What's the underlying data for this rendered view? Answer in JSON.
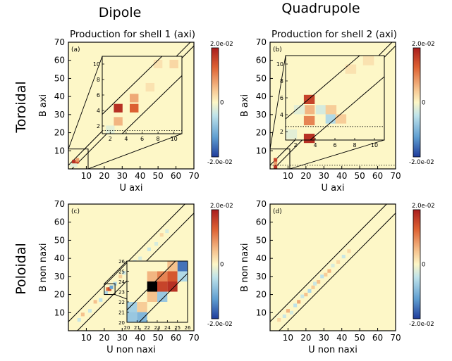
{
  "columns": [
    "Dipole",
    "Quadrupole"
  ],
  "rows": [
    "Toroidal",
    "Poloidal"
  ],
  "colorbar": {
    "max_label": "2.0e-02",
    "mid_label": "0",
    "min_label": "-2.0e-02",
    "colors": [
      "#1f3c9b",
      "#5f9ed1",
      "#bfe3ea",
      "#fdf7c7",
      "#f6c48f",
      "#de6233",
      "#a81e1e"
    ],
    "background": "#fdf7c7"
  },
  "chart_data": [
    {
      "type": "heatmap",
      "panel": "(a)",
      "title": "Production for shell 1 (axi)",
      "xlabel": "U axi",
      "ylabel": "B axi",
      "xlim": [
        0,
        70
      ],
      "ylim": [
        0,
        70
      ],
      "xticks": [
        10,
        20,
        30,
        40,
        50,
        60,
        70
      ],
      "yticks": [
        10,
        20,
        30,
        40,
        50,
        60,
        70
      ],
      "color_range": [
        -0.02,
        0.02
      ],
      "band_halfwidth": 2,
      "cells": [
        {
          "u": 3,
          "b": 2,
          "v": 0.002
        },
        {
          "u": 3,
          "b": 4,
          "v": 0.018
        },
        {
          "u": 4,
          "b": 2,
          "v": -0.002
        },
        {
          "u": 5,
          "b": 4,
          "v": 0.015
        },
        {
          "u": 5,
          "b": 5,
          "v": 0.008
        },
        {
          "u": 2,
          "b": 2,
          "v": -0.002
        }
      ],
      "inset": {
        "xlim": [
          1,
          11
        ],
        "ylim": [
          1,
          11
        ],
        "xticks": [
          2,
          4,
          6,
          8,
          10
        ],
        "yticks": [
          2,
          4,
          6,
          8,
          10
        ],
        "dotted_y": 1.4,
        "cells": [
          {
            "u": 2,
            "b": 1.5,
            "v": -0.002
          },
          {
            "u": 3,
            "b": 2.6,
            "v": 0.006
          },
          {
            "u": 3,
            "b": 4.3,
            "v": 0.018
          },
          {
            "u": 5,
            "b": 4.3,
            "v": 0.013
          },
          {
            "u": 5,
            "b": 5.6,
            "v": 0.007
          },
          {
            "u": 7,
            "b": 7,
            "v": 0.002
          },
          {
            "u": 8,
            "b": 10,
            "v": 0.002
          },
          {
            "u": 10,
            "b": 10,
            "v": 0.003
          }
        ]
      }
    },
    {
      "type": "heatmap",
      "panel": "(b)",
      "title": "Production for shell 2 (axi)",
      "xlabel": "U axi",
      "ylabel": "B axi",
      "xlim": [
        0,
        70
      ],
      "ylim": [
        0,
        70
      ],
      "xticks": [
        10,
        20,
        30,
        40,
        50,
        60,
        70
      ],
      "yticks": [
        10,
        20,
        30,
        40,
        50,
        60,
        70
      ],
      "color_range": [
        -0.02,
        0.02
      ],
      "band_halfwidth": 2,
      "cells": [
        {
          "u": 3,
          "b": 1,
          "v": 0.018
        },
        {
          "u": 3,
          "b": 3,
          "v": 0.008
        },
        {
          "u": 3,
          "b": 5,
          "v": 0.016
        }
      ],
      "inset": {
        "xlim": [
          1,
          11
        ],
        "ylim": [
          1,
          11
        ],
        "xticks": [
          2,
          4,
          6,
          8,
          10
        ],
        "yticks": [
          2,
          4,
          6,
          8,
          10
        ],
        "dotted_y": 2.6,
        "cells": [
          {
            "u": 1.6,
            "b": 1.7,
            "v": -0.002
          },
          {
            "u": 3.4,
            "b": 1.2,
            "v": 0.018
          },
          {
            "u": 3.4,
            "b": 3.3,
            "v": 0.01
          },
          {
            "u": 3.4,
            "b": 4.6,
            "v": 0.006
          },
          {
            "u": 3.4,
            "b": 5.8,
            "v": 0.016
          },
          {
            "u": 2.4,
            "b": 4.6,
            "v": -0.002
          },
          {
            "u": 4.6,
            "b": 4.6,
            "v": -0.003
          },
          {
            "u": 5.6,
            "b": 3.5,
            "v": -0.006
          },
          {
            "u": 5.6,
            "b": 4.6,
            "v": 0.004
          },
          {
            "u": 6.6,
            "b": 3.5,
            "v": 0.004
          },
          {
            "u": 7.6,
            "b": 9.4,
            "v": 0.002
          },
          {
            "u": 9.4,
            "b": 10.4,
            "v": 0.002
          }
        ]
      }
    },
    {
      "type": "heatmap",
      "panel": "(c)",
      "title": "",
      "xlabel": "U non naxi",
      "ylabel": "B non naxi",
      "xlim": [
        0,
        70
      ],
      "ylim": [
        0,
        70
      ],
      "xticks": [
        10,
        20,
        30,
        40,
        50,
        60,
        70
      ],
      "yticks": [
        10,
        20,
        30,
        40,
        50,
        60,
        70
      ],
      "color_range": [
        -0.02,
        0.02
      ],
      "band_halfwidth": 5,
      "cells": [
        {
          "u": 6,
          "b": 6,
          "v": -0.004
        },
        {
          "u": 8,
          "b": 9,
          "v": 0.005
        },
        {
          "u": 12,
          "b": 11,
          "v": -0.004
        },
        {
          "u": 15,
          "b": 16,
          "v": 0.005
        },
        {
          "u": 18,
          "b": 17,
          "v": -0.005
        },
        {
          "u": 21,
          "b": 21,
          "v": -0.006
        },
        {
          "u": 22,
          "b": 23,
          "v": 0.012
        },
        {
          "u": 23,
          "b": 23,
          "v": 0.015
        },
        {
          "u": 24,
          "b": 24,
          "v": -0.012
        },
        {
          "u": 26,
          "b": 26,
          "v": -0.006
        },
        {
          "u": 29,
          "b": 30,
          "v": 0.004
        },
        {
          "u": 31,
          "b": 32,
          "v": -0.004
        },
        {
          "u": 34,
          "b": 34,
          "v": -0.006
        },
        {
          "u": 37,
          "b": 38,
          "v": -0.004
        },
        {
          "u": 40,
          "b": 40,
          "v": -0.003
        },
        {
          "u": 45,
          "b": 45,
          "v": -0.004
        },
        {
          "u": 49,
          "b": 48,
          "v": -0.003
        },
        {
          "u": 52,
          "b": 53,
          "v": 0.003
        },
        {
          "u": 55,
          "b": 55,
          "v": -0.003
        }
      ],
      "inset": {
        "xlim": [
          20,
          26
        ],
        "ylim": [
          20,
          26
        ],
        "xticks": [
          20,
          21,
          22,
          23,
          24,
          25,
          26
        ],
        "yticks": [
          20,
          21,
          22,
          23,
          24,
          25,
          26
        ],
        "cells": [
          {
            "u": 20.5,
            "b": 20.5,
            "v": -0.008
          },
          {
            "u": 21.5,
            "b": 20.5,
            "v": -0.01
          },
          {
            "u": 20.5,
            "b": 21.5,
            "v": -0.007
          },
          {
            "u": 21.5,
            "b": 21.5,
            "v": 0.004
          },
          {
            "u": 22.5,
            "b": 22.5,
            "v": 0.005
          },
          {
            "u": 23.5,
            "b": 22.5,
            "v": -0.008
          },
          {
            "u": 23.5,
            "b": 23.5,
            "v": 0.016
          },
          {
            "u": 24.5,
            "b": 23.5,
            "v": 0.018
          },
          {
            "u": 22.5,
            "b": 24.5,
            "v": 0.006
          },
          {
            "u": 23.5,
            "b": 24.5,
            "v": 0.01
          },
          {
            "u": 24.5,
            "b": 24.5,
            "v": 0.014
          },
          {
            "u": 25.5,
            "b": 24.5,
            "v": -0.006
          },
          {
            "u": 25.5,
            "b": 25.5,
            "v": -0.016
          },
          {
            "u": 24.5,
            "b": 25.5,
            "v": 0.005
          }
        ],
        "black_cell": {
          "u": 22.5,
          "b": 23.5
        }
      }
    },
    {
      "type": "heatmap",
      "panel": "(d)",
      "title": "",
      "xlabel": "U non naxi",
      "ylabel": "B non naxi",
      "xlim": [
        0,
        70
      ],
      "ylim": [
        0,
        70
      ],
      "xticks": [
        10,
        20,
        30,
        40,
        50,
        60,
        70
      ],
      "yticks": [
        10,
        20,
        30,
        40,
        50,
        60,
        70
      ],
      "color_range": [
        -0.02,
        0.02
      ],
      "band_halfwidth": 5,
      "cells": [
        {
          "u": 5,
          "b": 6,
          "v": 0.003
        },
        {
          "u": 8,
          "b": 8,
          "v": -0.004
        },
        {
          "u": 10,
          "b": 11,
          "v": 0.006
        },
        {
          "u": 12,
          "b": 10,
          "v": -0.003
        },
        {
          "u": 14,
          "b": 14,
          "v": -0.005
        },
        {
          "u": 16,
          "b": 16,
          "v": 0.007
        },
        {
          "u": 18,
          "b": 19,
          "v": -0.004
        },
        {
          "u": 20,
          "b": 20,
          "v": 0.005
        },
        {
          "u": 22,
          "b": 22,
          "v": -0.006
        },
        {
          "u": 24,
          "b": 24,
          "v": 0.004
        },
        {
          "u": 25,
          "b": 26,
          "v": -0.004
        },
        {
          "u": 27,
          "b": 27,
          "v": 0.005
        },
        {
          "u": 29,
          "b": 30,
          "v": -0.005
        },
        {
          "u": 31,
          "b": 31,
          "v": 0.004
        },
        {
          "u": 33,
          "b": 33,
          "v": 0.006
        },
        {
          "u": 35,
          "b": 36,
          "v": -0.003
        },
        {
          "u": 38,
          "b": 38,
          "v": 0.003
        },
        {
          "u": 41,
          "b": 41,
          "v": -0.004
        },
        {
          "u": 44,
          "b": 44,
          "v": 0.003
        }
      ]
    }
  ]
}
